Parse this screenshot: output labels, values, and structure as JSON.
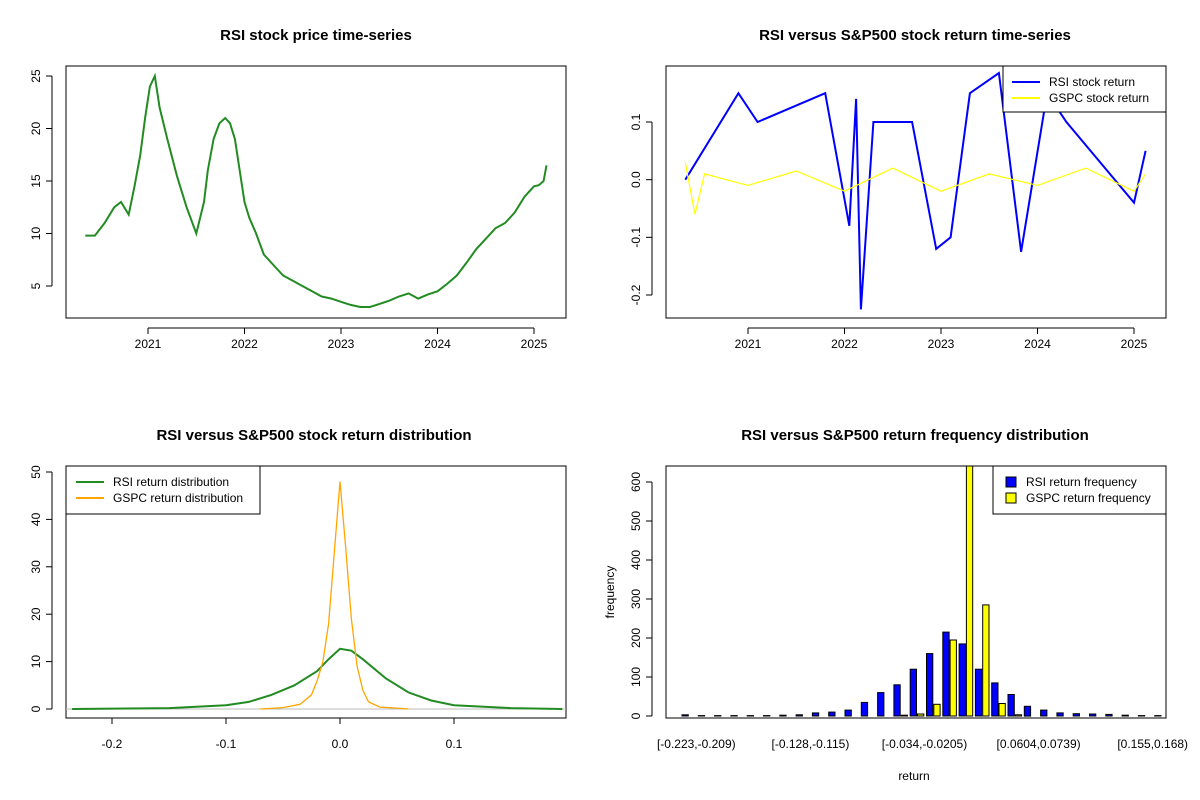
{
  "chart_data": [
    {
      "type": "line",
      "title": "RSI stock price time-series",
      "xlabel": "",
      "ylabel": "",
      "xticks": [
        "2021",
        "2022",
        "2023",
        "2024",
        "2025"
      ],
      "yticks": [
        5,
        10,
        15,
        20,
        25
      ],
      "ylim": [
        2,
        26
      ],
      "colors": {
        "price": "#228B22"
      },
      "series": [
        {
          "x": [
            2020.35,
            2020.45,
            2020.55,
            2020.65,
            2020.72,
            2020.8,
            2020.86,
            2020.92,
            2020.97,
            2021.02,
            2021.07,
            2021.12,
            2021.2,
            2021.3,
            2021.4,
            2021.5,
            2021.58,
            2021.62,
            2021.68,
            2021.74,
            2021.8,
            2021.85,
            2021.9,
            2021.95,
            2022.0,
            2022.05,
            2022.12,
            2022.2,
            2022.3,
            2022.4,
            2022.5,
            2022.6,
            2022.7,
            2022.8,
            2022.9,
            2023.0,
            2023.1,
            2023.2,
            2023.3,
            2023.4,
            2023.5,
            2023.6,
            2023.7,
            2023.8,
            2023.9,
            2024.0,
            2024.1,
            2024.2,
            2024.3,
            2024.4,
            2024.5,
            2024.6,
            2024.7,
            2024.8,
            2024.9,
            2025.0,
            2025.05,
            2025.1,
            2025.13
          ],
          "y": [
            9.8,
            9.8,
            11,
            12.5,
            13,
            11.8,
            14.5,
            17.5,
            21,
            24,
            25,
            22,
            19,
            15.5,
            12.5,
            10,
            13,
            16,
            19,
            20.5,
            21,
            20.5,
            19,
            16,
            13,
            11.5,
            10,
            8,
            7,
            6,
            5.5,
            5,
            4.5,
            4,
            3.8,
            3.5,
            3.2,
            3,
            3,
            3.3,
            3.6,
            4,
            4.3,
            3.8,
            4.2,
            4.5,
            5.2,
            6,
            7.2,
            8.5,
            9.5,
            10.5,
            11,
            12,
            13.5,
            14.5,
            14.6,
            15,
            16.5
          ]
        }
      ]
    },
    {
      "type": "line",
      "title": "RSI versus S&P500 stock return time-series",
      "xlabel": "",
      "ylabel": "",
      "xticks": [
        "2021",
        "2022",
        "2023",
        "2024",
        "2025"
      ],
      "yticks": [
        -0.2,
        -0.1,
        0.0,
        0.1
      ],
      "ylim": [
        -0.24,
        0.2
      ],
      "legend_position": "top-right",
      "series": [
        {
          "name": "RSI stock return",
          "color": "#0000FF",
          "x": [
            2020.35,
            2020.9,
            2021.1,
            2021.8,
            2022.05,
            2022.12,
            2022.17,
            2022.3,
            2022.7,
            2022.95,
            2023.1,
            2023.3,
            2023.6,
            2023.83,
            2024.1,
            2024.3,
            2024.6,
            2025.0,
            2025.12
          ],
          "y": [
            0.0,
            0.15,
            0.1,
            0.15,
            -0.08,
            0.14,
            -0.225,
            0.1,
            0.1,
            -0.12,
            -0.1,
            0.15,
            0.185,
            -0.125,
            0.15,
            0.1,
            0.04,
            -0.04,
            0.05
          ]
        },
        {
          "name": "GSPC stock return",
          "color": "#FFFF00",
          "x": [
            2020.35,
            2020.45,
            2020.55,
            2021.0,
            2021.5,
            2022.0,
            2022.5,
            2023.0,
            2023.5,
            2024.0,
            2024.5,
            2025.0,
            2025.12
          ],
          "y": [
            0.03,
            -0.06,
            0.01,
            -0.01,
            0.015,
            -0.02,
            0.02,
            -0.02,
            0.01,
            -0.01,
            0.02,
            -0.02,
            0.01
          ]
        }
      ]
    },
    {
      "type": "line",
      "title": "RSI versus S&P500 stock return distribution",
      "xlabel": "",
      "ylabel": "",
      "xticks": [
        "-0.2",
        "-0.1",
        "0.0",
        "0.1"
      ],
      "yticks": [
        0,
        10,
        20,
        30,
        40,
        50
      ],
      "xlim": [
        -0.235,
        0.195
      ],
      "ylim": [
        -1.5,
        51
      ],
      "legend_position": "top-left",
      "series": [
        {
          "name": "RSI return distribution",
          "color": "#228B22",
          "x": [
            -0.235,
            -0.15,
            -0.1,
            -0.08,
            -0.06,
            -0.04,
            -0.02,
            -0.01,
            0.0,
            0.01,
            0.02,
            0.04,
            0.06,
            0.08,
            0.1,
            0.15,
            0.195
          ],
          "y": [
            0,
            0.2,
            0.8,
            1.5,
            3,
            5,
            8,
            10.5,
            12.7,
            12.3,
            10.5,
            6.5,
            3.5,
            1.8,
            0.8,
            0.2,
            0
          ]
        },
        {
          "name": "GSPC return distribution",
          "color": "#FFA500",
          "x": [
            -0.07,
            -0.05,
            -0.035,
            -0.025,
            -0.02,
            -0.015,
            -0.01,
            -0.005,
            0.0,
            0.005,
            0.01,
            0.015,
            0.02,
            0.025,
            0.035,
            0.05,
            0.06
          ],
          "y": [
            0,
            0.3,
            1,
            3,
            6,
            10,
            18,
            33,
            48,
            34,
            19,
            9,
            4,
            1.5,
            0.4,
            0.2,
            0
          ]
        }
      ]
    },
    {
      "type": "bar",
      "title": "RSI versus S&P500 return frequency distribution",
      "xlabel": "return",
      "ylabel": "frequency",
      "tick_labels": [
        "[-0.223,-0.209)",
        "[-0.128,-0.115)",
        "[-0.034,-0.0205)",
        "[0.0604,0.0739)",
        "[0.155,0.168)"
      ],
      "tick_label_bins": [
        0,
        7,
        14,
        21,
        28
      ],
      "yticks": [
        0,
        100,
        200,
        300,
        400,
        500,
        600
      ],
      "ylim": [
        0,
        650
      ],
      "legend_position": "top-right",
      "series": [
        {
          "name": "RSI return frequency",
          "color": "#0000FF",
          "values": [
            3,
            1,
            1,
            1,
            1,
            1,
            2,
            3,
            8,
            10,
            15,
            35,
            60,
            80,
            120,
            160,
            215,
            185,
            120,
            85,
            55,
            25,
            15,
            8,
            6,
            5,
            4,
            2,
            1,
            1
          ]
        },
        {
          "name": "GSPC return frequency",
          "color": "#FFFF00",
          "values": [
            0,
            0,
            0,
            0,
            0,
            0,
            0,
            0,
            0,
            0,
            0,
            0,
            0,
            2,
            5,
            30,
            195,
            650,
            285,
            32,
            3,
            0,
            0,
            0,
            0,
            0,
            0,
            0,
            0,
            0
          ]
        }
      ]
    }
  ]
}
